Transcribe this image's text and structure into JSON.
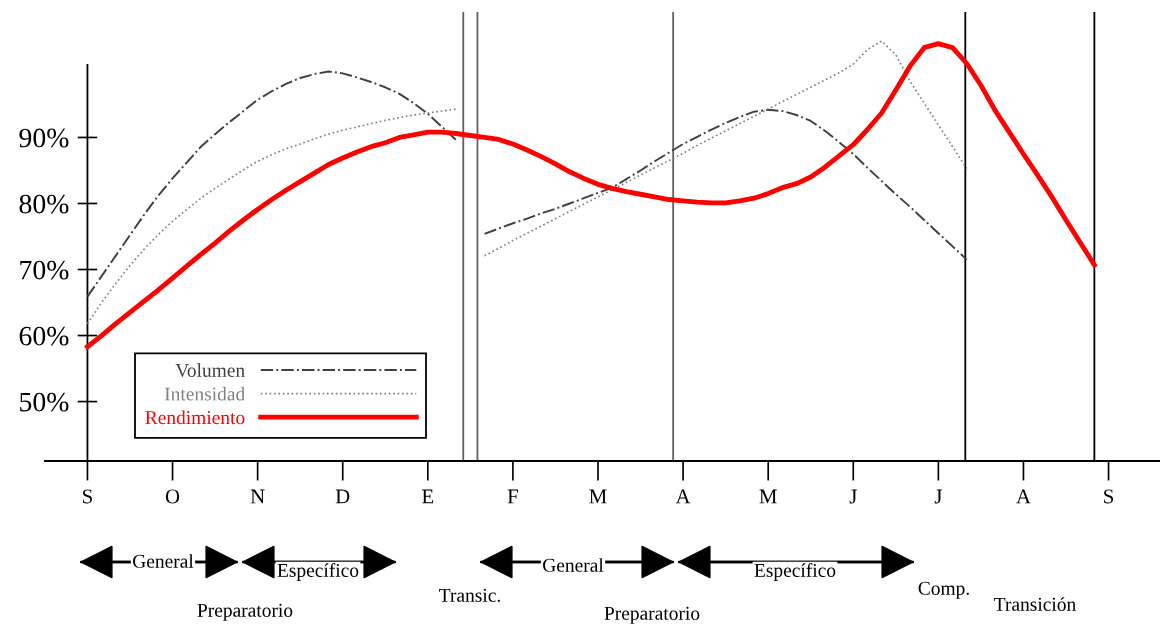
{
  "chart_data": {
    "type": "line",
    "categories": [
      "S",
      null,
      null,
      null,
      null,
      null,
      "O",
      null,
      null,
      null,
      null,
      null,
      "N",
      null,
      null,
      null,
      null,
      null,
      "D",
      null,
      null,
      null,
      null,
      null,
      "E",
      null,
      null,
      null,
      null,
      null,
      "F",
      null,
      null,
      null,
      null,
      null,
      "M",
      null,
      null,
      null,
      null,
      null,
      "A",
      null,
      null,
      null,
      null,
      null,
      "M",
      null,
      null,
      null,
      null,
      null,
      "J",
      null,
      null,
      null,
      null,
      null,
      "J",
      null,
      null,
      null,
      null,
      null,
      "A",
      null,
      null,
      null,
      null,
      null,
      "S"
    ],
    "ylim": [
      41,
      109
    ],
    "yticks": [
      {
        "value": 50,
        "label": "50%"
      },
      {
        "value": 60,
        "label": "60%"
      },
      {
        "value": 70,
        "label": "70%"
      },
      {
        "value": 80,
        "label": "80%"
      },
      {
        "value": 90,
        "label": "90%"
      }
    ],
    "series": [
      {
        "name": "Volumen",
        "color": "#404040",
        "line_style": "dashdot",
        "values": [
          65.9,
          69.0,
          72.1,
          75.2,
          78.3,
          81.2,
          83.8,
          86.2,
          88.6,
          90.5,
          92.3,
          94.0,
          95.7,
          97.0,
          98.1,
          99.0,
          99.6,
          100.0,
          99.7,
          99.1,
          98.4,
          97.6,
          96.6,
          95.2,
          93.6,
          91.6,
          89.6,
          null,
          75.4,
          76.2,
          77.0,
          77.7,
          78.5,
          79.2,
          80.0,
          80.8,
          81.6,
          82.4,
          83.7,
          85.0,
          86.4,
          87.7,
          89.0,
          90.1,
          91.2,
          92.2,
          93.1,
          93.9,
          94.2,
          94.0,
          93.4,
          92.5,
          91.0,
          89.3,
          87.5,
          85.4,
          83.4,
          81.4,
          79.5,
          77.5,
          75.5,
          73.5,
          71.5,
          null,
          null,
          null,
          null,
          null,
          null,
          null,
          null,
          null,
          null
        ]
      },
      {
        "name": "Intensidad",
        "color": "#808080",
        "line_style": "dotted",
        "values": [
          61.8,
          65.0,
          67.9,
          70.6,
          73.1,
          75.3,
          77.3,
          79.1,
          80.8,
          82.3,
          83.7,
          85.1,
          86.4,
          87.4,
          88.3,
          89.0,
          89.8,
          90.5,
          91.1,
          91.6,
          92.1,
          92.6,
          93.0,
          93.4,
          93.7,
          94.0,
          94.3,
          null,
          72.1,
          73.2,
          74.4,
          75.5,
          76.6,
          77.7,
          78.8,
          79.9,
          81.0,
          82.1,
          83.2,
          84.3,
          85.4,
          86.5,
          87.6,
          88.8,
          89.9,
          91.0,
          92.1,
          93.2,
          94.3,
          95.4,
          96.5,
          97.6,
          98.7,
          99.8,
          101.1,
          103.3,
          104.6,
          102.5,
          98.5,
          95.2,
          91.9,
          88.6,
          85.3,
          null,
          null,
          null,
          null,
          null,
          null,
          null,
          null,
          null,
          null
        ]
      },
      {
        "name": "Rendimiento",
        "color": "#ff0000",
        "line_style": "solid",
        "values": [
          58.3,
          60.0,
          61.8,
          63.5,
          65.2,
          66.9,
          68.7,
          70.5,
          72.3,
          74.0,
          75.8,
          77.5,
          79.1,
          80.6,
          82.0,
          83.3,
          84.6,
          85.9,
          86.9,
          87.8,
          88.6,
          89.2,
          90.0,
          90.4,
          90.8,
          90.8,
          90.6,
          90.3,
          90.0,
          89.7,
          89.0,
          88.1,
          87.1,
          86.0,
          84.8,
          83.8,
          82.9,
          82.3,
          81.8,
          81.4,
          81.0,
          80.6,
          80.4,
          80.2,
          80.1,
          80.1,
          80.4,
          80.8,
          81.5,
          82.4,
          83.0,
          84.0,
          85.5,
          87.2,
          88.9,
          91.2,
          93.7,
          97.2,
          100.8,
          103.6,
          104.2,
          103.6,
          101.2,
          97.9,
          94.1,
          90.8,
          87.5,
          84.3,
          81.0,
          77.5,
          74.1,
          70.7,
          null
        ]
      }
    ],
    "legend": "bottom left",
    "grid": false,
    "annotations": [
      "General",
      "Específico",
      "Preparatorio",
      "Transic.",
      "General",
      "Preparatorio",
      "Específico",
      "Comp.",
      "Transición"
    ]
  }
}
